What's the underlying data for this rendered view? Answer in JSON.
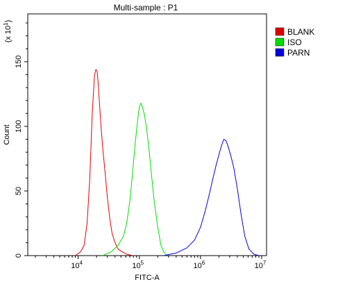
{
  "chart_data": {
    "type": "line",
    "title": "Multi-sample : P1",
    "xlabel": "FITC-A",
    "ylabel": "Count",
    "y_multiplier": "(x 10",
    "y_multiplier_exp": "1",
    "y_multiplier_close": ")",
    "x_scale": "log",
    "xlim": [
      1500,
      12000000
    ],
    "ylim": [
      0,
      187
    ],
    "grid": false,
    "legend_position": "top-right",
    "x_ticks": [
      {
        "value": 10000,
        "base": "10",
        "exp": "4"
      },
      {
        "value": 100000,
        "base": "10",
        "exp": "5"
      },
      {
        "value": 1000000,
        "base": "10",
        "exp": "6"
      },
      {
        "value": 10000000,
        "base": "10",
        "exp": "7"
      }
    ],
    "y_ticks": [
      {
        "value": 0,
        "label": "0"
      },
      {
        "value": 50,
        "label": "50"
      },
      {
        "value": 100,
        "label": "100"
      },
      {
        "value": 150,
        "label": "150"
      }
    ],
    "series": [
      {
        "name": "BLANK",
        "color": "#e00000",
        "x": [
          9000,
          11000,
          12500,
          14000,
          15500,
          17000,
          18500,
          19500,
          20500,
          21500,
          23000,
          25000,
          27500,
          30000,
          33000,
          36000,
          40000,
          45000,
          52000,
          62000,
          80000
        ],
        "y": [
          0,
          3,
          8,
          25,
          60,
          110,
          140,
          144,
          142,
          130,
          108,
          85,
          65,
          45,
          28,
          17,
          10,
          5,
          3,
          1,
          0
        ]
      },
      {
        "name": "ISO",
        "color": "#00dd00",
        "x": [
          25000,
          35000,
          45000,
          55000,
          62000,
          70000,
          78000,
          86000,
          94000,
          100000,
          106000,
          112000,
          120000,
          130000,
          142000,
          156000,
          175000,
          200000,
          225000,
          250000,
          280000
        ],
        "y": [
          0,
          3,
          8,
          15,
          25,
          42,
          65,
          88,
          105,
          115,
          118,
          115,
          110,
          100,
          85,
          65,
          42,
          22,
          8,
          3,
          0
        ]
      },
      {
        "name": "PARN",
        "color": "#0000dd",
        "x": [
          250000,
          400000,
          600000,
          800000,
          1000000,
          1200000,
          1400000,
          1600000,
          1800000,
          2000000,
          2200000,
          2400000,
          2600000,
          2800000,
          3100000,
          3500000,
          4000000,
          4600000,
          5300000,
          6200000,
          7500000,
          9000000
        ],
        "y": [
          0,
          2,
          6,
          12,
          22,
          35,
          48,
          60,
          70,
          78,
          85,
          90,
          89,
          85,
          78,
          68,
          52,
          32,
          15,
          5,
          1,
          0
        ]
      }
    ]
  }
}
